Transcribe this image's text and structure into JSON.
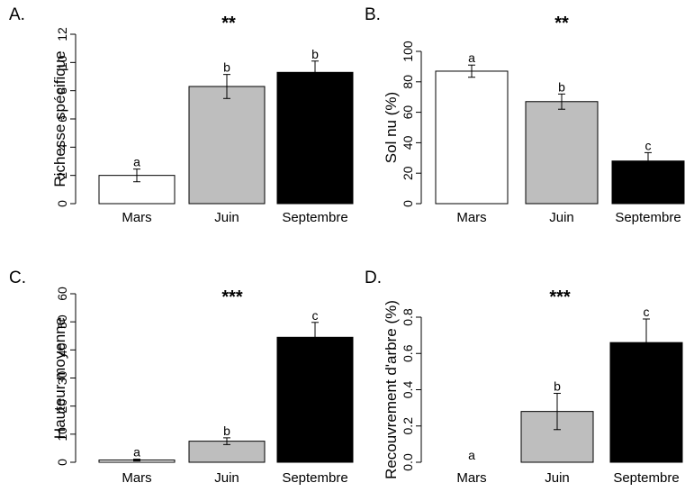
{
  "colors": {
    "mars": "#ffffff",
    "juin": "#bebebe",
    "septembre": "#000000",
    "stroke": "#000000"
  },
  "chart_data": [
    {
      "type": "bar",
      "letter": "A.",
      "significance": "**",
      "ylabel": "Richesse spécifique",
      "categories": [
        "Mars",
        "Juin",
        "Septembre"
      ],
      "values": [
        2.0,
        8.3,
        9.3
      ],
      "errors": [
        0.45,
        0.85,
        0.8
      ],
      "groups": [
        "a",
        "b",
        "b"
      ],
      "ylim": [
        0,
        12
      ],
      "yticks": [
        0,
        2,
        4,
        6,
        8,
        10,
        12
      ],
      "ytick_labels": [
        "0",
        "2",
        "4",
        "6",
        "8",
        "10",
        "12"
      ]
    },
    {
      "type": "bar",
      "letter": "B.",
      "significance": "**",
      "ylabel": "Sol nu (%)",
      "categories": [
        "Mars",
        "Juin",
        "Septembre"
      ],
      "values": [
        87,
        67,
        28
      ],
      "errors": [
        4,
        5,
        5.5
      ],
      "groups": [
        "a",
        "b",
        "c"
      ],
      "ylim": [
        0,
        100
      ],
      "yticks": [
        0,
        20,
        40,
        60,
        80,
        100
      ],
      "ytick_labels": [
        "0",
        "20",
        "40",
        "60",
        "80",
        "100"
      ]
    },
    {
      "type": "bar",
      "letter": "C.",
      "significance": "***",
      "ylabel": "Hauteur moyenne",
      "categories": [
        "Mars",
        "Juin",
        "Septembre"
      ],
      "values": [
        0.8,
        7.5,
        44.5
      ],
      "errors": [
        0.3,
        1.2,
        5.3
      ],
      "groups": [
        "a",
        "b",
        "c"
      ],
      "ylim": [
        0,
        60
      ],
      "yticks": [
        0,
        10,
        20,
        30,
        40,
        50,
        60
      ],
      "ytick_labels": [
        "0",
        "10",
        "20",
        "30",
        "40",
        "50",
        "60"
      ]
    },
    {
      "type": "bar",
      "letter": "D.",
      "significance": "***",
      "ylabel": "Recouvrement d'arbre (%)",
      "categories": [
        "Mars",
        "Juin",
        "Septembre"
      ],
      "values": [
        0.0,
        0.28,
        0.66
      ],
      "errors": [
        0.0,
        0.1,
        0.13
      ],
      "groups": [
        "a",
        "b",
        "c"
      ],
      "ylim": [
        0,
        0.8
      ],
      "yticks": [
        0,
        0.2,
        0.4,
        0.6,
        0.8
      ],
      "ytick_labels": [
        "0.0",
        "0.2",
        "0.4",
        "0.6",
        "0.8"
      ]
    }
  ]
}
